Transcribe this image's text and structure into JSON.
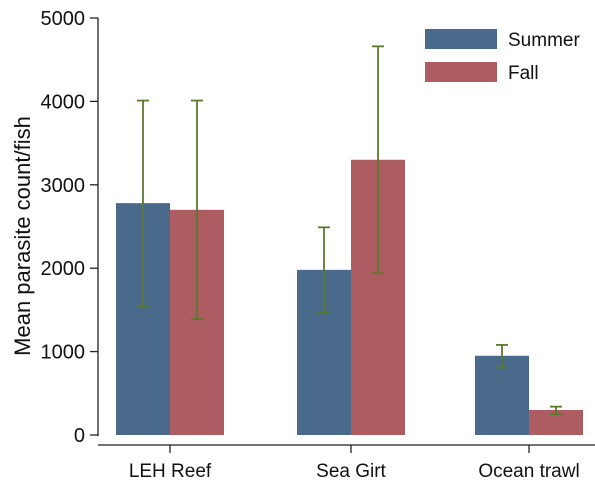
{
  "chart_data": {
    "type": "bar",
    "title": "",
    "xlabel": "",
    "ylabel": "Mean parasite count/fish",
    "categories": [
      "LEH Reef",
      "Sea Girt",
      "Ocean trawl"
    ],
    "ylim": [
      0,
      5000
    ],
    "yticks": [
      0,
      1000,
      2000,
      3000,
      4000,
      5000
    ],
    "grid": false,
    "legend_position": "top-right",
    "colors": {
      "Summer": "#4a6a8c",
      "Fall": "#ad5d62",
      "error_bar": "#5a7a2c",
      "axis": "#222222"
    },
    "series": [
      {
        "name": "Summer",
        "values": [
          2780,
          1980,
          950
        ],
        "error_low": [
          1540,
          1470,
          810
        ],
        "error_high": [
          4010,
          2490,
          1080
        ]
      },
      {
        "name": "Fall",
        "values": [
          2700,
          3300,
          300
        ],
        "error_low": [
          1390,
          1940,
          250
        ],
        "error_high": [
          4010,
          4660,
          340
        ]
      }
    ]
  }
}
